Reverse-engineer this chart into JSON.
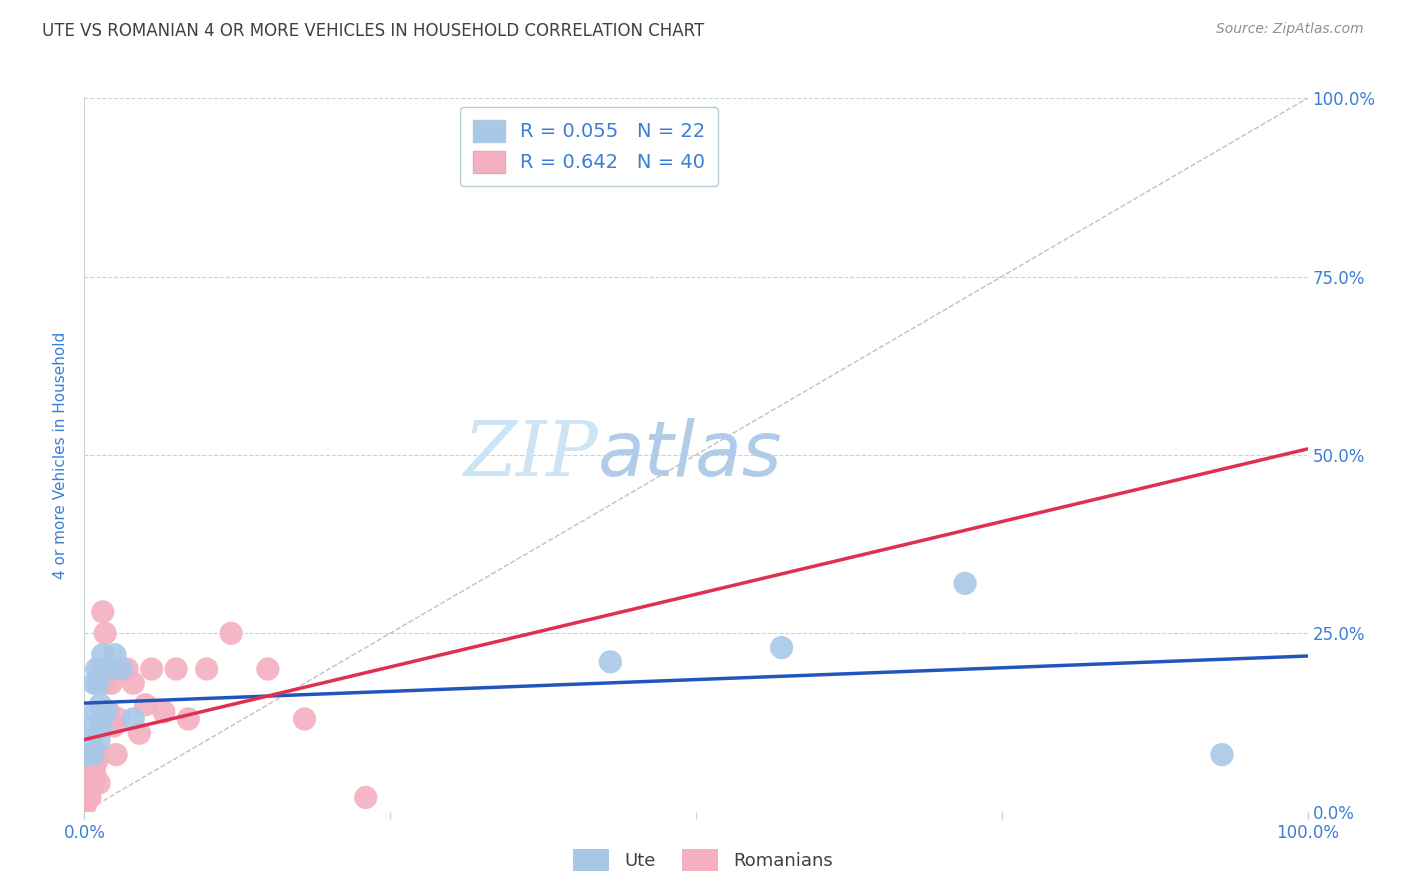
{
  "title": "UTE VS ROMANIAN 4 OR MORE VEHICLES IN HOUSEHOLD CORRELATION CHART",
  "source": "Source: ZipAtlas.com",
  "ylabel": "4 or more Vehicles in Household",
  "y_tick_labels": [
    "0.0%",
    "25.0%",
    "50.0%",
    "75.0%",
    "100.0%"
  ],
  "y_tick_values": [
    0,
    25,
    50,
    75,
    100
  ],
  "ute_color": "#a8c8e8",
  "romanian_color": "#f4b0c0",
  "ute_line_color": "#2255bb",
  "romanian_line_color": "#e03050",
  "title_color": "#404040",
  "source_color": "#909090",
  "legend_r_color": "#3a7fd5",
  "axis_label_color": "#3a7fd5",
  "watermark_zip_color": "#cce4f5",
  "watermark_atlas_color": "#b8d8f0",
  "background_color": "#ffffff",
  "grid_color": "#c8d4dc",
  "ute_x": [
    0.3,
    0.5,
    0.6,
    0.7,
    0.8,
    0.9,
    1.0,
    1.1,
    1.2,
    1.3,
    1.4,
    1.5,
    1.6,
    1.8,
    2.0,
    2.5,
    3.0,
    4.0,
    43.0,
    57.0,
    72.0,
    93.0
  ],
  "ute_y": [
    8.0,
    10.0,
    12.0,
    8.0,
    18.0,
    14.0,
    20.0,
    18.0,
    10.0,
    15.0,
    12.0,
    22.0,
    14.0,
    14.0,
    20.0,
    22.0,
    20.0,
    13.0,
    21.0,
    23.0,
    32.0,
    8.0
  ],
  "romanian_x": [
    0.1,
    0.15,
    0.2,
    0.25,
    0.3,
    0.35,
    0.4,
    0.45,
    0.5,
    0.6,
    0.7,
    0.8,
    0.9,
    1.0,
    1.1,
    1.2,
    1.3,
    1.5,
    1.6,
    1.7,
    1.8,
    2.0,
    2.2,
    2.4,
    2.6,
    2.8,
    3.0,
    3.5,
    4.0,
    4.5,
    5.0,
    5.5,
    6.5,
    7.5,
    8.5,
    10.0,
    12.0,
    15.0,
    18.0,
    23.0
  ],
  "romanian_y": [
    1.0,
    1.5,
    2.0,
    2.5,
    3.0,
    2.0,
    3.5,
    2.0,
    4.0,
    5.0,
    4.0,
    6.0,
    5.0,
    7.0,
    8.0,
    4.0,
    20.0,
    28.0,
    18.0,
    25.0,
    20.0,
    14.0,
    18.0,
    12.0,
    8.0,
    13.0,
    20.0,
    20.0,
    18.0,
    11.0,
    15.0,
    20.0,
    14.0,
    20.0,
    13.0,
    20.0,
    25.0,
    20.0,
    13.0,
    2.0
  ],
  "ref_line_color": "#c0b8b0",
  "legend_box_color": "#c8d4dc",
  "bottom_tick_x": [
    0.0,
    25.0,
    50.0,
    75.0,
    100.0
  ]
}
